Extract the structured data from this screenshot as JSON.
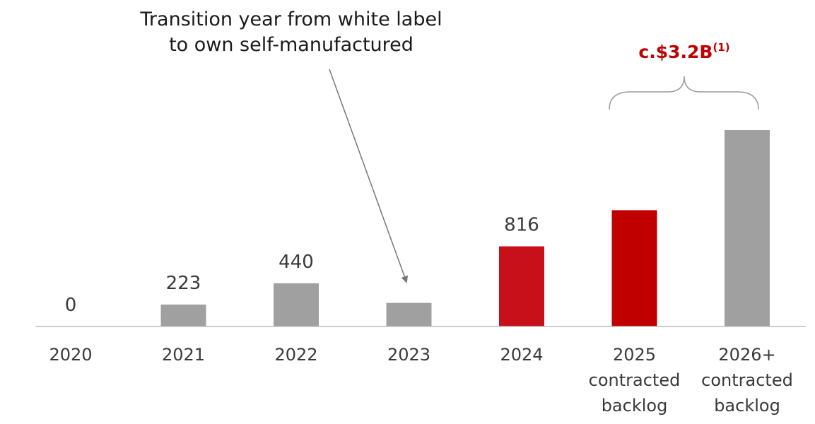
{
  "chart_data": {
    "type": "bar",
    "title": "",
    "xlabel": "",
    "ylabel": "",
    "categories": [
      [
        "2020"
      ],
      [
        "2021"
      ],
      [
        "2022"
      ],
      [
        "2023"
      ],
      [
        "2024"
      ],
      [
        "2025",
        "contracted",
        "backlog"
      ],
      [
        "2026+",
        "contracted",
        "backlog"
      ]
    ],
    "values": [
      0,
      223,
      440,
      240,
      816,
      1184,
      2000
    ],
    "value_labels": [
      "0",
      "223",
      "440",
      "",
      "816",
      "",
      ""
    ],
    "bar_colors": [
      "#a0a0a0",
      "#a0a0a0",
      "#a0a0a0",
      "#a0a0a0",
      "#c8101a",
      "#c00000",
      "#a0a0a0"
    ],
    "ylim": [
      0,
      2000
    ],
    "grid": false,
    "legend": "none",
    "annotations": {
      "transition_note": [
        "Transition year from white label",
        "to own self-manufactured"
      ],
      "backlog_total": "c.$3.2B",
      "backlog_total_footnote": "(1)"
    }
  },
  "colors": {
    "accent_red": "#c00000",
    "gray_bar": "#a0a0a0",
    "axis": "#bfbfbf",
    "text": "#3a3a3a"
  }
}
